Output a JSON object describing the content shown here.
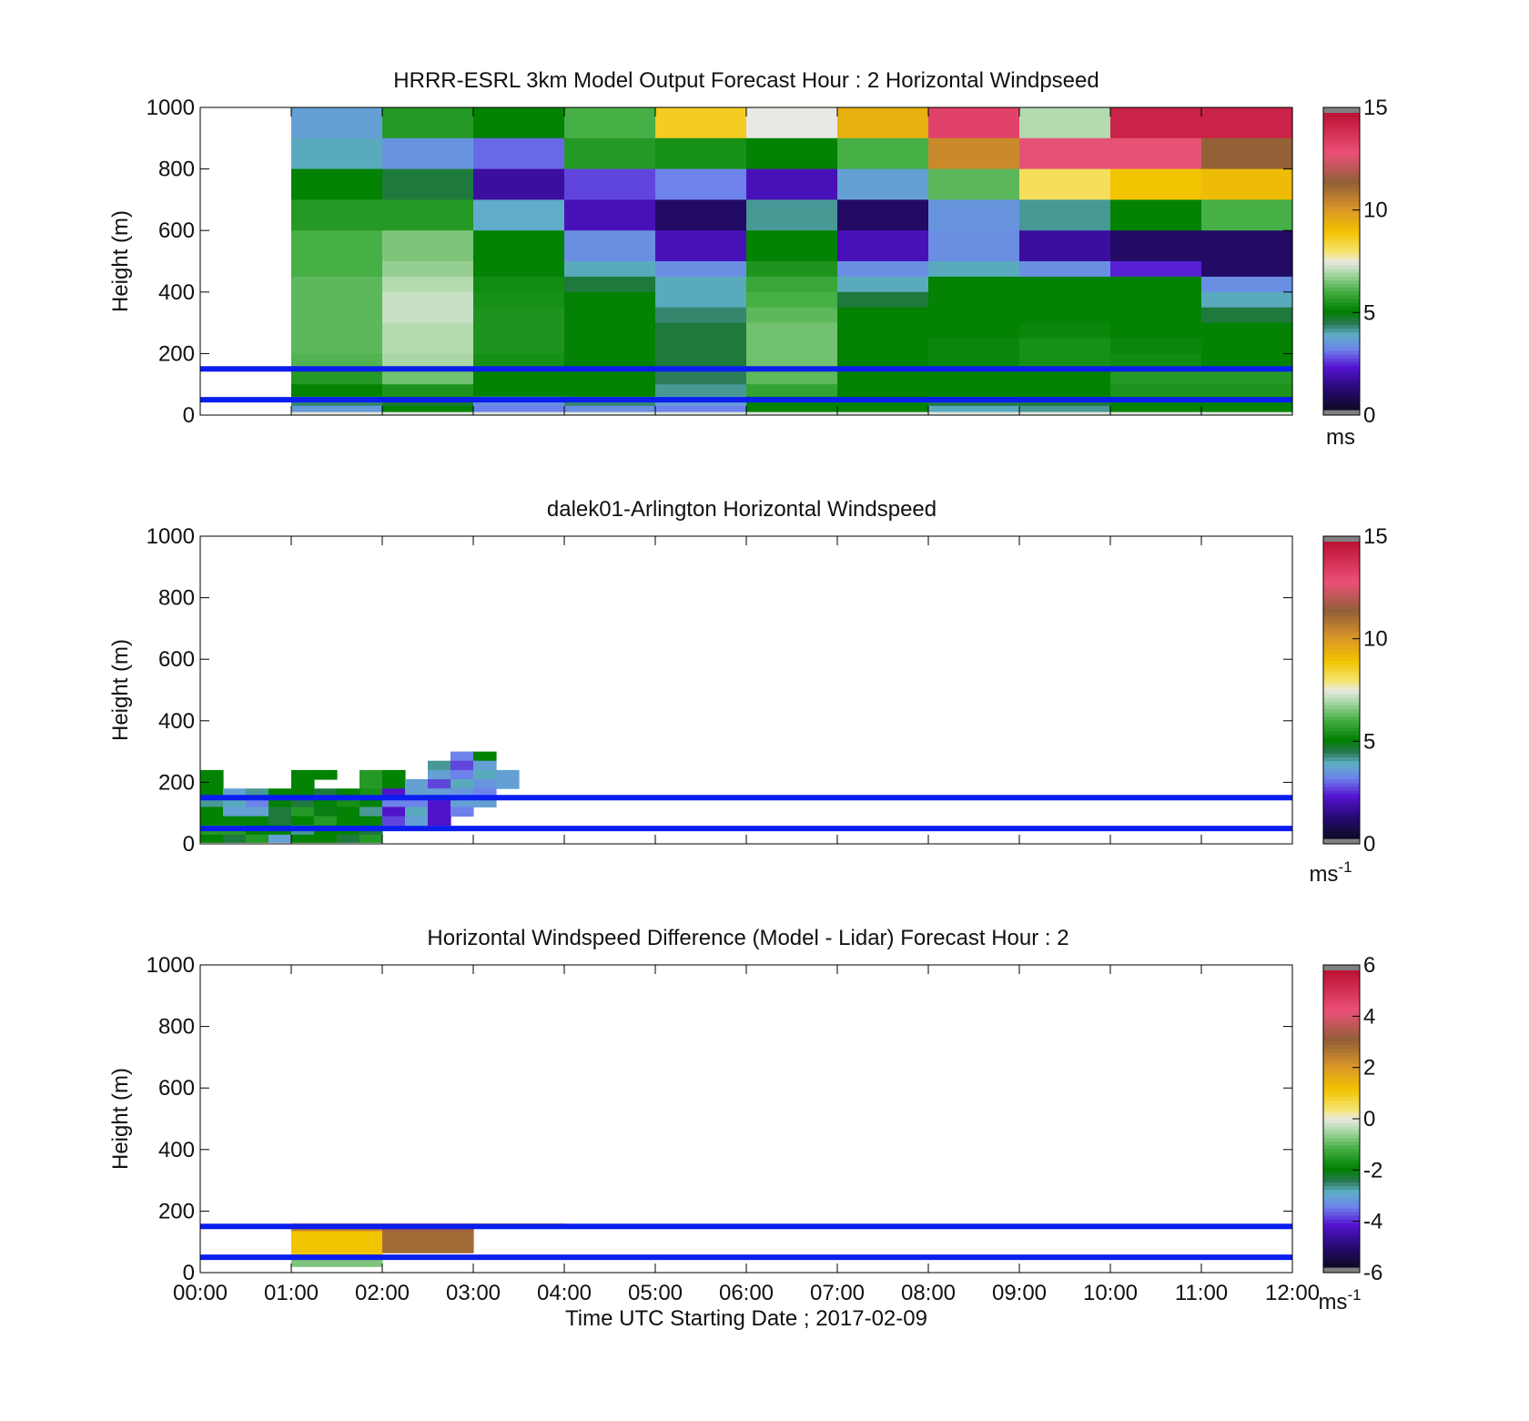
{
  "x_axis": {
    "ticks": [
      "00:00",
      "01:00",
      "02:00",
      "03:00",
      "04:00",
      "05:00",
      "06:00",
      "07:00",
      "08:00",
      "09:00",
      "10:00",
      "11:00",
      "12:00"
    ],
    "label": "Time UTC  Starting Date ; 2017-02-09",
    "range_hours": [
      0,
      12
    ]
  },
  "chart_data": [
    {
      "type": "heatmap",
      "title": "HRRR-ESRL 3km Model Output   Forecast Hour : 2 Horizontal Windpseed",
      "ylabel": "Height (m)",
      "ylim": [
        0,
        1000
      ],
      "yticks": [
        "0",
        "200",
        "400",
        "600",
        "800",
        "1000"
      ],
      "colorbar": {
        "range": [
          0,
          15
        ],
        "ticks": [
          "0",
          "5",
          "10",
          "15"
        ],
        "unit": "ms"
      },
      "reference_lines_m": [
        50,
        150
      ],
      "reference_line_color": "#0a1ef0",
      "x_hours": [
        1,
        2,
        3,
        4,
        5,
        6,
        7,
        8,
        9,
        10,
        11
      ],
      "rows": [
        {
          "y0": 900,
          "y1": 1000,
          "values": [
            3.5,
            5.5,
            5.0,
            6.0,
            8.7,
            7.5,
            9.5,
            13.5,
            7.0,
            14.5,
            14.5
          ]
        },
        {
          "y0": 800,
          "y1": 900,
          "values": [
            3.8,
            3.3,
            2.8,
            5.5,
            5.3,
            5.0,
            6.0,
            10.5,
            13.0,
            13.0,
            11.5
          ]
        },
        {
          "y0": 700,
          "y1": 800,
          "values": [
            5.0,
            4.5,
            1.5,
            2.5,
            3.0,
            1.8,
            3.5,
            6.2,
            8.2,
            9.0,
            9.2
          ]
        },
        {
          "y0": 600,
          "y1": 700,
          "values": [
            5.5,
            5.5,
            3.7,
            1.8,
            0.8,
            4.0,
            0.8,
            3.3,
            4.0,
            5.0,
            6.0
          ]
        },
        {
          "y0": 500,
          "y1": 600,
          "values": [
            6.0,
            6.5,
            5.0,
            3.2,
            1.8,
            5.0,
            1.8,
            3.2,
            1.5,
            0.8,
            0.8
          ]
        },
        {
          "y0": 450,
          "y1": 500,
          "values": [
            6.0,
            6.7,
            5.0,
            3.8,
            3.2,
            5.4,
            3.2,
            3.8,
            3.2,
            2.2,
            0.8
          ]
        },
        {
          "y0": 400,
          "y1": 450,
          "values": [
            6.2,
            7.0,
            5.2,
            4.5,
            3.8,
            5.8,
            3.8,
            5.0,
            5.0,
            5.0,
            3.2
          ]
        },
        {
          "y0": 350,
          "y1": 400,
          "values": [
            6.2,
            7.2,
            5.3,
            5.0,
            3.8,
            6.0,
            4.5,
            5.0,
            5.0,
            5.0,
            3.8
          ]
        },
        {
          "y0": 300,
          "y1": 350,
          "values": [
            6.2,
            7.2,
            5.4,
            5.0,
            4.2,
            6.2,
            5.0,
            5.0,
            5.0,
            5.0,
            4.5
          ]
        },
        {
          "y0": 250,
          "y1": 300,
          "values": [
            6.2,
            7.0,
            5.4,
            5.0,
            4.5,
            6.4,
            5.0,
            5.0,
            5.1,
            5.0,
            5.0
          ]
        },
        {
          "y0": 200,
          "y1": 250,
          "values": [
            6.2,
            7.0,
            5.4,
            5.0,
            4.5,
            6.4,
            5.0,
            5.1,
            5.3,
            5.1,
            5.0
          ]
        },
        {
          "y0": 150,
          "y1": 200,
          "values": [
            6.1,
            6.9,
            5.3,
            5.0,
            4.5,
            6.4,
            5.0,
            5.1,
            5.3,
            5.2,
            5.0
          ]
        },
        {
          "y0": 100,
          "y1": 150,
          "values": [
            5.5,
            6.4,
            5.0,
            5.0,
            4.3,
            6.2,
            5.0,
            5.0,
            5.0,
            5.5,
            5.5
          ]
        },
        {
          "y0": 60,
          "y1": 100,
          "values": [
            5.0,
            5.4,
            5.0,
            5.0,
            4.0,
            5.7,
            5.0,
            5.0,
            5.0,
            5.4,
            5.4
          ]
        },
        {
          "y0": 30,
          "y1": 60,
          "values": [
            4.2,
            4.6,
            3.2,
            4.2,
            3.4,
            5.0,
            5.0,
            4.4,
            4.5,
            5.0,
            5.0
          ]
        },
        {
          "y0": 10,
          "y1": 30,
          "values": [
            3.4,
            5.0,
            3.0,
            3.2,
            3.0,
            5.0,
            5.0,
            3.8,
            4.0,
            5.0,
            5.0
          ]
        },
        {
          "y0": 0,
          "y1": 10,
          "values": [
            7.4,
            7.4,
            7.4,
            7.4,
            7.4,
            7.4,
            7.4,
            7.4,
            7.4,
            7.4,
            7.4
          ]
        }
      ]
    },
    {
      "type": "heatmap",
      "title": "dalek01-Arlington  Horizontal Windspeed",
      "ylabel": "Height (m)",
      "ylim": [
        0,
        1000
      ],
      "yticks": [
        "0",
        "200",
        "400",
        "600",
        "800",
        "1000"
      ],
      "colorbar": {
        "range": [
          0,
          15
        ],
        "ticks": [
          "0",
          "5",
          "10",
          "15"
        ],
        "unit": "ms",
        "unit_exp": "-1"
      },
      "reference_lines_m": [
        50,
        150
      ],
      "reference_line_color": "#0a1ef0",
      "x_hours": [
        0.0,
        0.25,
        0.5,
        0.75,
        1.0,
        1.25,
        1.5,
        1.75,
        2.0,
        2.25,
        2.5,
        2.75,
        3.0,
        3.25
      ],
      "rows": [
        {
          "y0": 270,
          "y1": 300,
          "values": [
            null,
            null,
            null,
            null,
            null,
            null,
            null,
            null,
            null,
            null,
            null,
            3.0,
            5.0,
            null
          ]
        },
        {
          "y0": 240,
          "y1": 270,
          "values": [
            null,
            null,
            null,
            null,
            null,
            null,
            null,
            null,
            null,
            null,
            4.0,
            2.5,
            3.5,
            null
          ]
        },
        {
          "y0": 210,
          "y1": 240,
          "values": [
            5.0,
            null,
            null,
            null,
            5.0,
            5.0,
            null,
            5.5,
            5.0,
            null,
            3.5,
            3.0,
            3.8,
            3.5
          ]
        },
        {
          "y0": 180,
          "y1": 210,
          "values": [
            5.0,
            null,
            null,
            null,
            5.0,
            null,
            null,
            5.5,
            5.0,
            3.5,
            2.5,
            3.8,
            3.3,
            3.5
          ]
        },
        {
          "y0": 150,
          "y1": 180,
          "values": [
            5.0,
            3.5,
            4.0,
            5.0,
            5.0,
            4.5,
            5.0,
            5.3,
            2.0,
            3.5,
            3.5,
            3.3,
            3.0,
            null
          ]
        },
        {
          "y0": 120,
          "y1": 150,
          "values": [
            4.0,
            3.8,
            3.0,
            5.0,
            4.5,
            5.0,
            5.3,
            5.0,
            3.0,
            3.0,
            2.0,
            3.5,
            3.5,
            null
          ]
        },
        {
          "y0": 90,
          "y1": 120,
          "values": [
            5.0,
            3.5,
            3.5,
            4.5,
            5.5,
            4.8,
            5.0,
            4.0,
            2.0,
            3.8,
            2.0,
            3.0,
            null,
            null
          ]
        },
        {
          "y0": 60,
          "y1": 90,
          "values": [
            5.0,
            5.0,
            5.0,
            4.5,
            5.0,
            5.5,
            5.0,
            5.0,
            2.5,
            3.5,
            2.0,
            null,
            null,
            null
          ]
        },
        {
          "y0": 30,
          "y1": 60,
          "values": [
            5.5,
            5.5,
            5.0,
            5.0,
            4.0,
            5.0,
            5.0,
            4.5,
            null,
            null,
            null,
            null,
            null,
            null
          ]
        },
        {
          "y0": 5,
          "y1": 30,
          "values": [
            5.0,
            4.5,
            5.5,
            3.5,
            5.0,
            5.0,
            4.5,
            5.5,
            null,
            null,
            null,
            null,
            null,
            null
          ]
        }
      ]
    },
    {
      "type": "heatmap",
      "title": "Horizontal Windspeed Difference (Model - Lidar) Forecast Hour : 2",
      "ylabel": "Height (m)",
      "ylim": [
        0,
        1000
      ],
      "yticks": [
        "0",
        "200",
        "400",
        "600",
        "800",
        "1000"
      ],
      "colorbar": {
        "range": [
          -6,
          6
        ],
        "ticks": [
          "-6",
          "-4",
          "-2",
          "0",
          "2",
          "4",
          "6"
        ],
        "unit": "ms",
        "unit_exp": "-1"
      },
      "reference_lines_m": [
        50,
        150
      ],
      "reference_line_color": "#0a1ef0",
      "x_hours": [
        1,
        2,
        3
      ],
      "rows": [
        {
          "y0": 155,
          "y1": 160,
          "values": [
            2.0,
            2.5,
            1.5
          ]
        },
        {
          "y0": 135,
          "y1": 155,
          "values": [
            2.5,
            3.5,
            null
          ]
        },
        {
          "y0": 65,
          "y1": 135,
          "values": [
            1.2,
            3.0,
            null
          ]
        },
        {
          "y0": 50,
          "y1": 65,
          "values": [
            1.2,
            null,
            null
          ]
        },
        {
          "y0": 20,
          "y1": 50,
          "values": [
            -0.8,
            null,
            null
          ]
        }
      ]
    }
  ]
}
